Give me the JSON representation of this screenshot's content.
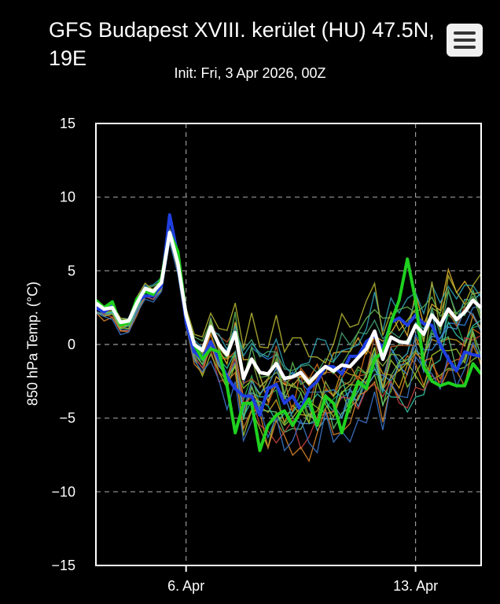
{
  "header": {
    "title": "GFS Budapest XVIII. kerület (HU) 47.5N, 19E",
    "subtitle": "Init: Fri, 3 Apr 2026, 00Z",
    "menu_icon": "hamburger-menu-icon"
  },
  "chart_data": {
    "type": "line",
    "title": "GFS Budapest XVIII. kerület (HU) 47.5N, 19E",
    "subtitle": "Init: Fri, 3 Apr 2026, 00Z",
    "ylabel": "850 hPa Temp. (°C)",
    "xlabel": "",
    "ylim": [
      -15,
      15
    ],
    "yticks": [
      15,
      10,
      5,
      0,
      -5,
      -10,
      -15
    ],
    "xlim": [
      3.25,
      15.0
    ],
    "xticks": [
      {
        "value": 6,
        "label": "6. Apr"
      },
      {
        "value": 13,
        "label": "13. Apr"
      }
    ],
    "grid": true,
    "x_unit": "day of April 2026",
    "series": [
      {
        "color": "#ffffff",
        "x": [
          3.25,
          3.5,
          3.75,
          4.0,
          4.25,
          4.5,
          4.75,
          5.0,
          5.25,
          5.5,
          5.75,
          6.0,
          6.25,
          6.5,
          6.75,
          7.0,
          7.25,
          7.5,
          7.75,
          8.0,
          8.25,
          8.5,
          8.75,
          9.0,
          9.25,
          9.5,
          9.75,
          10.0,
          10.25,
          10.5,
          10.75,
          11.0,
          11.25,
          11.5,
          11.75,
          12.0,
          12.25,
          12.5,
          12.75,
          13.0,
          13.25,
          13.5,
          13.75,
          14.0,
          14.25,
          14.5,
          14.75,
          15.0
        ],
        "values": [
          2.8,
          2.4,
          2.5,
          1.5,
          1.6,
          2.8,
          3.8,
          3.6,
          4.2,
          7.6,
          5.5,
          2.0,
          0.0,
          -0.4,
          1.2,
          0.0,
          -0.7,
          0.8,
          -2.3,
          -1.0,
          -1.9,
          -2.0,
          -1.3,
          -2.3,
          -2.2,
          -1.9,
          -2.6,
          -2.0,
          -1.5,
          -1.8,
          -1.4,
          -1.5,
          -0.9,
          -0.3,
          0.9,
          -1.0,
          0.5,
          0.2,
          0.1,
          1.3,
          0.7,
          2.0,
          1.3,
          2.4,
          1.7,
          2.2,
          3.0,
          2.5
        ]
      },
      {
        "color": "#1fd11f",
        "x": [
          3.25,
          3.5,
          3.75,
          4.0,
          4.25,
          4.5,
          4.75,
          5.0,
          5.25,
          5.5,
          5.75,
          6.0,
          6.25,
          6.5,
          6.75,
          7.0,
          7.25,
          7.5,
          7.75,
          8.0,
          8.25,
          8.5,
          8.75,
          9.0,
          9.25,
          9.5,
          9.75,
          10.0,
          10.25,
          10.5,
          10.75,
          11.0,
          11.25,
          11.5,
          11.75,
          12.0,
          12.25,
          12.5,
          12.75,
          13.0,
          13.25,
          13.5,
          13.75,
          14.0,
          14.25,
          14.5,
          14.75,
          15.0
        ],
        "values": [
          3.0,
          2.5,
          2.9,
          1.3,
          1.5,
          3.1,
          3.6,
          3.4,
          4.5,
          7.6,
          6.3,
          2.0,
          0.0,
          -1.0,
          -0.3,
          -0.5,
          -2.8,
          -6.0,
          -4.0,
          -4.0,
          -7.2,
          -5.5,
          -4.8,
          -4.5,
          -5.5,
          -4.5,
          -3.7,
          -5.5,
          -3.5,
          -4.0,
          -6.0,
          -4.0,
          -2.5,
          -3.0,
          -1.0,
          -0.5,
          1.5,
          3.0,
          5.8,
          3.0,
          -1.5,
          -2.5,
          -2.8,
          -2.6,
          -2.8,
          -2.8,
          -1.3,
          -2.0
        ]
      },
      {
        "color": "#1f3fe0",
        "x": [
          3.25,
          3.5,
          3.75,
          4.0,
          4.25,
          4.5,
          4.75,
          5.0,
          5.25,
          5.5,
          5.75,
          6.0,
          6.25,
          6.5,
          6.75,
          7.0,
          7.25,
          7.5,
          7.75,
          8.0,
          8.25,
          8.5,
          8.75,
          9.0,
          9.25,
          9.5,
          9.75,
          10.0,
          10.25,
          10.5,
          10.75,
          11.0,
          11.25,
          11.5,
          11.75,
          12.0,
          12.25,
          12.5,
          12.75,
          13.0,
          13.25,
          13.5,
          13.75,
          14.0,
          14.25,
          14.5,
          14.75,
          15.0
        ],
        "values": [
          2.5,
          2.2,
          2.6,
          1.4,
          1.6,
          2.9,
          3.3,
          3.3,
          4.0,
          8.8,
          6.0,
          1.5,
          -0.5,
          -1.0,
          0.2,
          -1.0,
          -2.2,
          -3.0,
          -3.5,
          -3.5,
          -4.8,
          -3.0,
          -2.7,
          -4.0,
          -3.5,
          -4.5,
          -3.0,
          -2.5,
          -1.5,
          -1.5,
          -2.0,
          -0.8,
          -0.8,
          0.2,
          0.6,
          -0.3,
          1.5,
          1.8,
          1.3,
          2.0,
          1.4,
          1.3,
          0.0,
          -1.0,
          -1.8,
          -0.5,
          -0.7,
          -0.8
        ]
      }
    ]
  }
}
